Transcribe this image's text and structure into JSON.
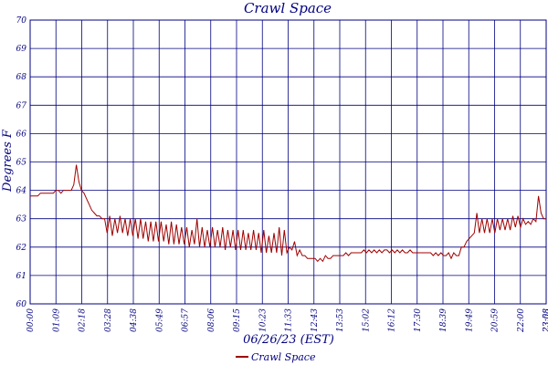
{
  "chart_data": {
    "type": "line",
    "title": "Crawl Space",
    "xlabel": "06/26/23 (EST)",
    "ylabel": "Degrees F",
    "ylim": [
      60,
      70
    ],
    "yticks": [
      60,
      61,
      62,
      63,
      64,
      65,
      66,
      67,
      68,
      69,
      70
    ],
    "xticks": [
      "00:00",
      "01:09",
      "02:18",
      "03:28",
      "04:38",
      "05:49",
      "06:57",
      "08:06",
      "09:15",
      "10:23",
      "11:33",
      "12:43",
      "13:53",
      "15:02",
      "16:12",
      "17:30",
      "18:39",
      "19:49",
      "20:59",
      "22:00",
      "23:08",
      "23:58"
    ],
    "grid": true,
    "legend": "bottom-center",
    "colors": {
      "line": "#a00000",
      "text": "#000080",
      "grid": "#000080"
    },
    "series": [
      {
        "name": "Crawl Space",
        "x_range": [
          "00:00",
          "23:58"
        ],
        "values": [
          63.8,
          63.8,
          63.8,
          63.8,
          63.9,
          63.9,
          63.9,
          63.9,
          63.9,
          63.9,
          64.0,
          64.0,
          63.9,
          64.0,
          64.0,
          64.0,
          64.0,
          64.2,
          64.9,
          64.3,
          64.0,
          63.9,
          63.7,
          63.5,
          63.3,
          63.2,
          63.1,
          63.1,
          63.0,
          63.0,
          62.5,
          63.1,
          62.4,
          63.0,
          62.5,
          63.1,
          62.5,
          63.0,
          62.4,
          63.0,
          62.4,
          63.0,
          62.3,
          63.0,
          62.3,
          62.9,
          62.2,
          62.9,
          62.2,
          62.9,
          62.2,
          62.9,
          62.2,
          62.8,
          62.1,
          62.9,
          62.1,
          62.8,
          62.1,
          62.7,
          62.1,
          62.7,
          62.0,
          62.6,
          62.1,
          63.0,
          62.0,
          62.7,
          62.0,
          62.6,
          62.0,
          62.7,
          62.0,
          62.6,
          62.0,
          62.7,
          61.9,
          62.6,
          62.0,
          62.6,
          61.9,
          62.6,
          61.9,
          62.6,
          61.9,
          62.5,
          61.9,
          62.6,
          61.9,
          62.5,
          61.8,
          62.6,
          61.8,
          62.4,
          61.8,
          62.5,
          61.8,
          62.7,
          61.7,
          62.6,
          61.8,
          62.0,
          61.9,
          62.2,
          61.7,
          61.9,
          61.7,
          61.7,
          61.6,
          61.6,
          61.6,
          61.6,
          61.5,
          61.6,
          61.5,
          61.7,
          61.6,
          61.6,
          61.7,
          61.7,
          61.7,
          61.7,
          61.7,
          61.8,
          61.7,
          61.8,
          61.8,
          61.8,
          61.8,
          61.8,
          61.9,
          61.8,
          61.9,
          61.8,
          61.9,
          61.8,
          61.9,
          61.8,
          61.9,
          61.9,
          61.8,
          61.9,
          61.8,
          61.9,
          61.8,
          61.9,
          61.8,
          61.8,
          61.9,
          61.8,
          61.8,
          61.8,
          61.8,
          61.8,
          61.8,
          61.8,
          61.8,
          61.7,
          61.8,
          61.7,
          61.8,
          61.7,
          61.7,
          61.8,
          61.6,
          61.8,
          61.7,
          61.7,
          62.0,
          62.0,
          62.2,
          62.3,
          62.4,
          62.5,
          63.2,
          62.5,
          63.0,
          62.5,
          63.0,
          62.5,
          63.0,
          62.5,
          63.0,
          62.6,
          63.0,
          62.6,
          63.0,
          62.6,
          63.1,
          62.7,
          63.1,
          62.7,
          63.0,
          62.8,
          62.9,
          62.8,
          63.0,
          62.9,
          63.8,
          63.2,
          63.0,
          63.0
        ]
      }
    ]
  }
}
